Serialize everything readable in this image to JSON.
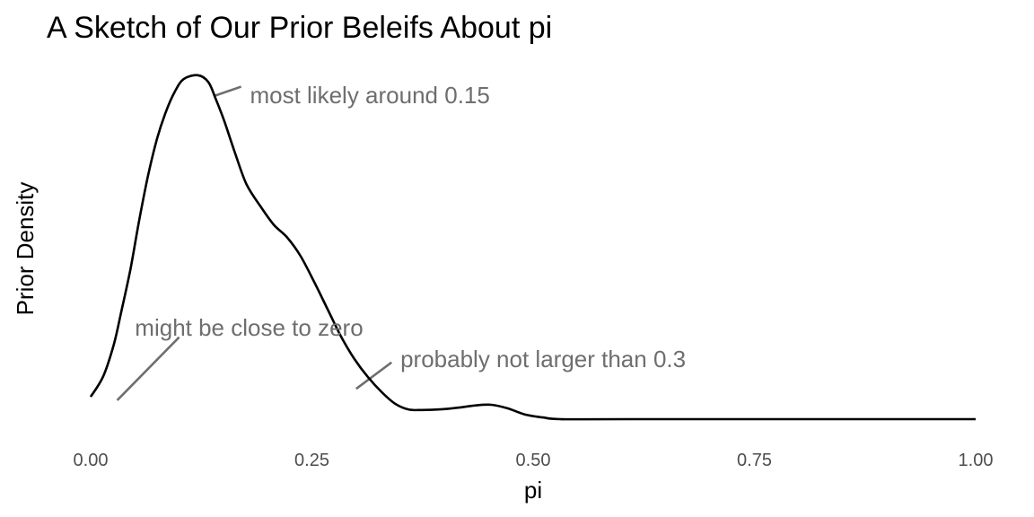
{
  "chart_data": {
    "type": "line",
    "title": "A Sketch of Our Prior Beleifs About pi",
    "xlabel": "pi",
    "ylabel": "Prior Density",
    "xlim": [
      0,
      1
    ],
    "ylim": [
      0,
      6.2
    ],
    "grid": false,
    "x_ticks": [
      0,
      0.25,
      0.5,
      0.75,
      1
    ],
    "x_tick_labels": [
      "0.00",
      "0.25",
      "0.50",
      "0.75",
      "1.00"
    ],
    "series": [
      {
        "name": "prior density",
        "color": "#000000",
        "x": [
          0.0,
          0.014,
          0.026,
          0.034,
          0.045,
          0.055,
          0.065,
          0.075,
          0.085,
          0.095,
          0.105,
          0.121,
          0.133,
          0.141,
          0.151,
          0.163,
          0.176,
          0.192,
          0.207,
          0.222,
          0.237,
          0.253,
          0.268,
          0.283,
          0.298,
          0.313,
          0.329,
          0.344,
          0.359,
          0.374,
          0.395,
          0.415,
          0.435,
          0.453,
          0.471,
          0.491,
          0.511,
          0.531,
          0.608,
          1.0
        ],
        "y": [
          0.39,
          0.74,
          1.29,
          1.83,
          2.62,
          3.48,
          4.26,
          4.89,
          5.36,
          5.71,
          5.93,
          6.0,
          5.88,
          5.6,
          5.2,
          4.65,
          4.1,
          3.71,
          3.39,
          3.17,
          2.85,
          2.38,
          1.91,
          1.44,
          1.05,
          0.74,
          0.47,
          0.27,
          0.17,
          0.16,
          0.17,
          0.2,
          0.24,
          0.25,
          0.19,
          0.08,
          0.03,
          0.0,
          0.0,
          0.0
        ]
      }
    ],
    "annotations": [
      {
        "text": "most likely around 0.15",
        "color": "#6e6e6e",
        "segment": {
          "x1": 0.14,
          "y1": 5.64,
          "x2": 0.17,
          "y2": 5.8
        },
        "text_x": 0.18,
        "text_y": 5.65
      },
      {
        "text": "might be close to zero",
        "color": "#6e6e6e",
        "segment": {
          "x1": 0.03,
          "y1": 0.33,
          "x2": 0.1,
          "y2": 1.43
        },
        "text_x": 0.05,
        "text_y": 1.6
      },
      {
        "text": "probably not larger than 0.3",
        "color": "#6e6e6e",
        "segment": {
          "x1": 0.3,
          "y1": 0.53,
          "x2": 0.34,
          "y2": 0.99
        },
        "text_x": 0.35,
        "text_y": 1.05
      }
    ]
  }
}
